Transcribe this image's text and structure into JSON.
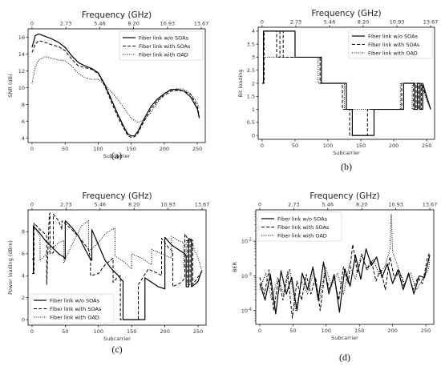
{
  "chart_data": [
    {
      "panel_label": "(a)",
      "type": "line",
      "title": "Frequency (GHz)",
      "top_ticks": [
        "0",
        "2.73",
        "5.46",
        "8.20",
        "10.93",
        "13.67"
      ],
      "xlabel": "Subcarrier",
      "ylabel": "SNR (dB)",
      "xlim": [
        -6,
        262
      ],
      "ylim": [
        3.5,
        17
      ],
      "xticks": [
        0,
        50,
        100,
        150,
        200,
        250
      ],
      "yticks": [
        4,
        6,
        8,
        10,
        12,
        14,
        16
      ],
      "legend_position": "top-right",
      "series": [
        {
          "name": "Fiber link w/o SOAs",
          "style": "solid",
          "x": [
            0,
            5,
            10,
            20,
            30,
            40,
            50,
            60,
            70,
            80,
            90,
            100,
            110,
            120,
            130,
            140,
            145,
            150,
            155,
            160,
            170,
            180,
            190,
            200,
            210,
            220,
            230,
            240,
            250,
            253
          ],
          "y": [
            14.8,
            16.2,
            16.4,
            16.1,
            15.8,
            15.4,
            14.8,
            13.8,
            13.0,
            12.6,
            12.3,
            11.8,
            10.4,
            8.6,
            6.8,
            5.2,
            4.5,
            4.3,
            4.3,
            4.8,
            6.4,
            7.8,
            8.7,
            9.3,
            9.8,
            9.8,
            9.6,
            8.9,
            7.5,
            6.4
          ]
        },
        {
          "name": "Fiber link with SOAs",
          "style": "dashed",
          "x": [
            0,
            5,
            10,
            20,
            30,
            40,
            50,
            60,
            70,
            80,
            90,
            100,
            110,
            120,
            130,
            140,
            145,
            150,
            155,
            160,
            170,
            180,
            190,
            200,
            210,
            220,
            230,
            240,
            250,
            253
          ],
          "y": [
            14.2,
            15.2,
            15.6,
            15.4,
            15.1,
            14.9,
            14.4,
            13.4,
            12.6,
            12.4,
            12.2,
            11.7,
            10.2,
            8.3,
            6.5,
            5.0,
            4.3,
            4.1,
            4.2,
            4.6,
            6.1,
            7.5,
            8.5,
            9.1,
            9.6,
            9.7,
            9.6,
            9.2,
            7.8,
            6.6
          ]
        },
        {
          "name": "Fiber link with OAD",
          "style": "dotted",
          "x": [
            0,
            5,
            10,
            20,
            30,
            40,
            50,
            60,
            70,
            80,
            90,
            100,
            110,
            120,
            130,
            140,
            150,
            160,
            170,
            180,
            190,
            200,
            210,
            220,
            230,
            240,
            250,
            253
          ],
          "y": [
            10.5,
            12.5,
            13.3,
            13.7,
            13.5,
            13.3,
            13.2,
            12.6,
            11.7,
            11.2,
            11.0,
            11.0,
            10.4,
            9.5,
            8.6,
            7.5,
            6.4,
            5.9,
            6.2,
            7.1,
            8.3,
            9.3,
            9.7,
            9.9,
            9.8,
            9.3,
            8.2,
            7.5
          ]
        }
      ]
    },
    {
      "panel_label": "(b)",
      "type": "line",
      "title": "Frequency (GHz)",
      "top_ticks": [
        "0",
        "2.73",
        "5.46",
        "8.20",
        "10.93",
        "13.67"
      ],
      "xlabel": "Subcarrier",
      "ylabel": "Bit loading",
      "xlim": [
        -6,
        262
      ],
      "ylim": [
        -0.15,
        4.15
      ],
      "xticks": [
        0,
        50,
        100,
        150,
        200,
        250
      ],
      "yticks": [
        0.0,
        0.5,
        1.0,
        1.5,
        2.0,
        2.5,
        3.0,
        3.5,
        4.0
      ],
      "legend_position": "top-right",
      "series": [
        {
          "name": "Fiber link w/o SOAs",
          "style": "solid",
          "x": [
            0,
            2,
            2,
            50,
            50,
            90,
            90,
            128,
            128,
            137,
            137,
            170,
            170,
            200,
            200,
            215,
            215,
            232,
            232,
            236,
            236,
            240,
            240,
            244,
            244,
            256
          ],
          "y": [
            2,
            2,
            4,
            4,
            3,
            3,
            2,
            2,
            1,
            1,
            0,
            0,
            1,
            1,
            1,
            1,
            2,
            2,
            1,
            1,
            2,
            2,
            1,
            1,
            2,
            1
          ]
        },
        {
          "name": "Fiber link with SOAs",
          "style": "dashed",
          "x": [
            0,
            3,
            3,
            22,
            22,
            27,
            27,
            32,
            32,
            45,
            45,
            88,
            88,
            122,
            122,
            133,
            133,
            160,
            160,
            195,
            195,
            212,
            212,
            230,
            230,
            234,
            234,
            238,
            238,
            242,
            242,
            256
          ],
          "y": [
            2,
            2,
            4,
            4,
            3,
            3,
            4,
            4,
            3,
            3,
            3,
            3,
            2,
            2,
            1,
            1,
            0,
            0,
            1,
            1,
            1,
            1,
            2,
            2,
            1,
            1,
            2,
            2,
            1,
            1,
            2,
            1
          ]
        },
        {
          "name": "Fiber link with OAD",
          "style": "dotted",
          "x": [
            0,
            2,
            2,
            12,
            12,
            48,
            48,
            85,
            85,
            125,
            125,
            150,
            150,
            180,
            180,
            210,
            210,
            228,
            228,
            232,
            232,
            236,
            236,
            240,
            240,
            256
          ],
          "y": [
            2,
            2,
            3,
            3,
            3,
            3,
            3,
            3,
            2,
            2,
            1,
            1,
            1,
            1,
            1,
            1,
            2,
            2,
            1,
            1,
            2,
            2,
            1,
            1,
            2,
            1
          ]
        }
      ]
    },
    {
      "panel_label": "(c)",
      "type": "line",
      "title": "Frequency (GHz)",
      "top_ticks": [
        "0",
        "2.73",
        "5.46",
        "8.20",
        "10.93",
        "13.67"
      ],
      "xlabel": "Subcarrier",
      "ylabel": "Power loading (dBm)",
      "xlim": [
        -6,
        262
      ],
      "ylim": [
        -0.5,
        10
      ],
      "xticks": [
        0,
        50,
        100,
        150,
        200,
        250
      ],
      "yticks": [
        0,
        2,
        4,
        6,
        8
      ],
      "legend_position": "bottom-left",
      "series": [
        {
          "name": "Fiber link w/o SOAs",
          "style": "solid",
          "x": [
            0,
            2,
            2,
            10,
            20,
            30,
            40,
            48,
            50,
            50,
            60,
            70,
            80,
            88,
            90,
            90,
            100,
            110,
            120,
            130,
            135,
            137,
            137,
            170,
            170,
            180,
            190,
            200,
            200,
            210,
            220,
            230,
            232,
            232,
            236,
            236,
            240,
            240,
            245,
            250,
            255
          ],
          "y": [
            4.2,
            4.2,
            8.5,
            8.0,
            7.2,
            6.6,
            6.0,
            5.7,
            5.5,
            9.0,
            8.4,
            7.6,
            6.4,
            5.5,
            5.4,
            8.2,
            6.8,
            5.4,
            4.6,
            4.0,
            3.6,
            3.5,
            0.0,
            0.0,
            3.8,
            3.4,
            3.0,
            2.8,
            7.5,
            6.8,
            6.4,
            6.0,
            5.8,
            3.0,
            3.0,
            7.4,
            7.2,
            3.0,
            3.2,
            3.5,
            4.4
          ]
        },
        {
          "name": "Fiber link with SOAs",
          "style": "dashed",
          "x": [
            0,
            3,
            3,
            12,
            20,
            22,
            22,
            26,
            27,
            27,
            32,
            32,
            40,
            45,
            45,
            60,
            75,
            85,
            88,
            88,
            100,
            110,
            120,
            122,
            122,
            128,
            133,
            133,
            160,
            160,
            175,
            190,
            195,
            195,
            205,
            212,
            212,
            225,
            230,
            230,
            234,
            234,
            238,
            238,
            242,
            242,
            256
          ],
          "y": [
            4.2,
            4.2,
            8.8,
            8.2,
            7.8,
            7.6,
            3.2,
            9.6,
            9.7,
            6.0,
            6.1,
            9.6,
            9.0,
            8.2,
            9.0,
            8.2,
            7.2,
            6.4,
            5.6,
            4.0,
            4.2,
            5.0,
            5.5,
            5.6,
            3.4,
            3.8,
            4.0,
            0.0,
            0.0,
            3.2,
            4.6,
            4.2,
            4.0,
            7.4,
            6.6,
            6.2,
            3.0,
            3.4,
            3.8,
            7.8,
            7.4,
            3.2,
            3.2,
            7.4,
            7.2,
            3.2,
            4.4
          ]
        },
        {
          "name": "Fiber link with OAD",
          "style": "dotted",
          "x": [
            0,
            2,
            2,
            8,
            12,
            12,
            25,
            40,
            48,
            48,
            60,
            75,
            85,
            85,
            100,
            110,
            120,
            125,
            125,
            140,
            150,
            150,
            165,
            180,
            180,
            195,
            210,
            210,
            220,
            228,
            228,
            232,
            232,
            236,
            236,
            240,
            240,
            250,
            256
          ],
          "y": [
            5.5,
            5.5,
            8.6,
            8.0,
            7.6,
            5.4,
            6.2,
            7.0,
            7.2,
            5.2,
            6.8,
            8.6,
            9.0,
            6.2,
            7.0,
            7.8,
            8.2,
            8.3,
            5.8,
            5.2,
            4.6,
            6.0,
            5.6,
            5.0,
            6.4,
            6.0,
            5.6,
            7.6,
            7.2,
            7.0,
            4.8,
            4.8,
            7.2,
            7.2,
            4.8,
            4.8,
            7.0,
            5.6,
            4.4
          ]
        }
      ]
    },
    {
      "panel_label": "(d)",
      "type": "line",
      "title": "Frequency (GHz)",
      "top_ticks": [
        "0",
        "2.73",
        "5.46",
        "8.20",
        "10.93",
        "13.67"
      ],
      "xlabel": "Subcarrier",
      "ylabel": "BER",
      "yscale": "log",
      "xlim": [
        -6,
        262
      ],
      "ylim": [
        4e-05,
        0.08
      ],
      "xticks": [
        0,
        50,
        100,
        150,
        200,
        250
      ],
      "yticks": [
        "10^-4",
        "10^-3",
        "10^-2"
      ],
      "legend_position": "top-left",
      "series": [
        {
          "name": "Fiber link w/o SOAs",
          "style": "solid",
          "x": [
            0,
            8,
            16,
            24,
            32,
            40,
            48,
            56,
            64,
            72,
            80,
            88,
            96,
            104,
            112,
            120,
            128,
            136,
            144,
            152,
            160,
            168,
            176,
            184,
            192,
            200,
            208,
            216,
            224,
            232,
            240,
            248,
            256
          ],
          "y": [
            0.0006,
            0.0002,
            0.0011,
            8e-05,
            0.0014,
            0.0003,
            0.0009,
            0.0001,
            0.0012,
            0.0004,
            0.0018,
            0.0002,
            0.0025,
            0.0003,
            0.0011,
            9e-05,
            0.0016,
            0.0005,
            0.004,
            0.0008,
            0.006,
            0.002,
            0.0035,
            0.0009,
            0.0022,
            0.0006,
            0.0015,
            0.0004,
            0.0012,
            0.0003,
            0.001,
            0.0009,
            0.004
          ]
        },
        {
          "name": "Fiber link with SOAs",
          "style": "dashed",
          "x": [
            0,
            7,
            14,
            21,
            28,
            35,
            42,
            49,
            56,
            63,
            70,
            77,
            84,
            91,
            98,
            105,
            112,
            119,
            126,
            133,
            140,
            147,
            154,
            161,
            168,
            175,
            182,
            189,
            196,
            203,
            210,
            217,
            224,
            231,
            238,
            245,
            252,
            256
          ],
          "y": [
            0.0009,
            0.0003,
            0.0015,
            0.0001,
            0.0008,
            0.0002,
            0.0013,
            6e-05,
            0.0007,
            0.0002,
            0.0011,
            0.0003,
            0.0009,
            0.0001,
            0.0012,
            0.0004,
            0.0009,
            0.0002,
            0.0018,
            0.0006,
            0.008,
            0.0012,
            0.004,
            0.0015,
            0.0028,
            0.0007,
            0.0016,
            0.0004,
            0.0035,
            0.0008,
            0.0014,
            0.0005,
            0.0011,
            0.0004,
            0.0009,
            0.0006,
            0.003,
            0.005
          ]
        },
        {
          "name": "Fiber link with OAD",
          "style": "dotted",
          "x": [
            0,
            9,
            18,
            27,
            36,
            45,
            54,
            63,
            72,
            81,
            90,
            99,
            108,
            117,
            126,
            135,
            144,
            153,
            162,
            171,
            180,
            189,
            196,
            198,
            200,
            209,
            218,
            227,
            236,
            245,
            254,
            256
          ],
          "y": [
            0.0004,
            0.0012,
            0.0002,
            0.0009,
            0.0003,
            0.0016,
            0.0001,
            0.0007,
            0.0003,
            0.0013,
            0.0002,
            0.0018,
            0.0005,
            0.0012,
            0.0003,
            0.0022,
            0.0008,
            0.0045,
            0.0015,
            0.003,
            0.0011,
            0.002,
            0.006,
            0.06,
            0.005,
            0.0016,
            0.0006,
            0.0012,
            0.0004,
            0.0008,
            0.0015,
            0.003
          ]
        }
      ]
    }
  ]
}
